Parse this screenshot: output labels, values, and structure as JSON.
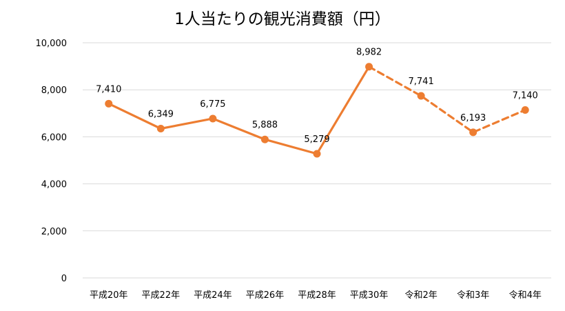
{
  "chart_data": {
    "type": "line",
    "title": "1人当たりの観光消費額（円）",
    "xlabel": "",
    "ylabel": "",
    "categories": [
      "平成20年",
      "平成22年",
      "平成24年",
      "平成26年",
      "平成28年",
      "平成30年",
      "令和2年",
      "令和3年",
      "令和4年"
    ],
    "series": [
      {
        "values": [
          7410,
          6349,
          6775,
          5888,
          5279,
          8982,
          7741,
          6193,
          7140
        ],
        "data_labels": [
          "7,410",
          "6,349",
          "6,775",
          "5,888",
          "5,279",
          "8,982",
          "7,741",
          "6,193",
          "7,140"
        ],
        "solid_until_index": 5,
        "dashed_from_index": 5,
        "color": "#ed7d31"
      }
    ],
    "ylim": [
      0,
      10000
    ],
    "yticks": [
      0,
      2000,
      4000,
      6000,
      8000,
      10000
    ],
    "ytick_labels": [
      "0",
      "2,000",
      "4,000",
      "6,000",
      "8,000",
      "10,000"
    ],
    "grid": true,
    "legend": "none"
  }
}
